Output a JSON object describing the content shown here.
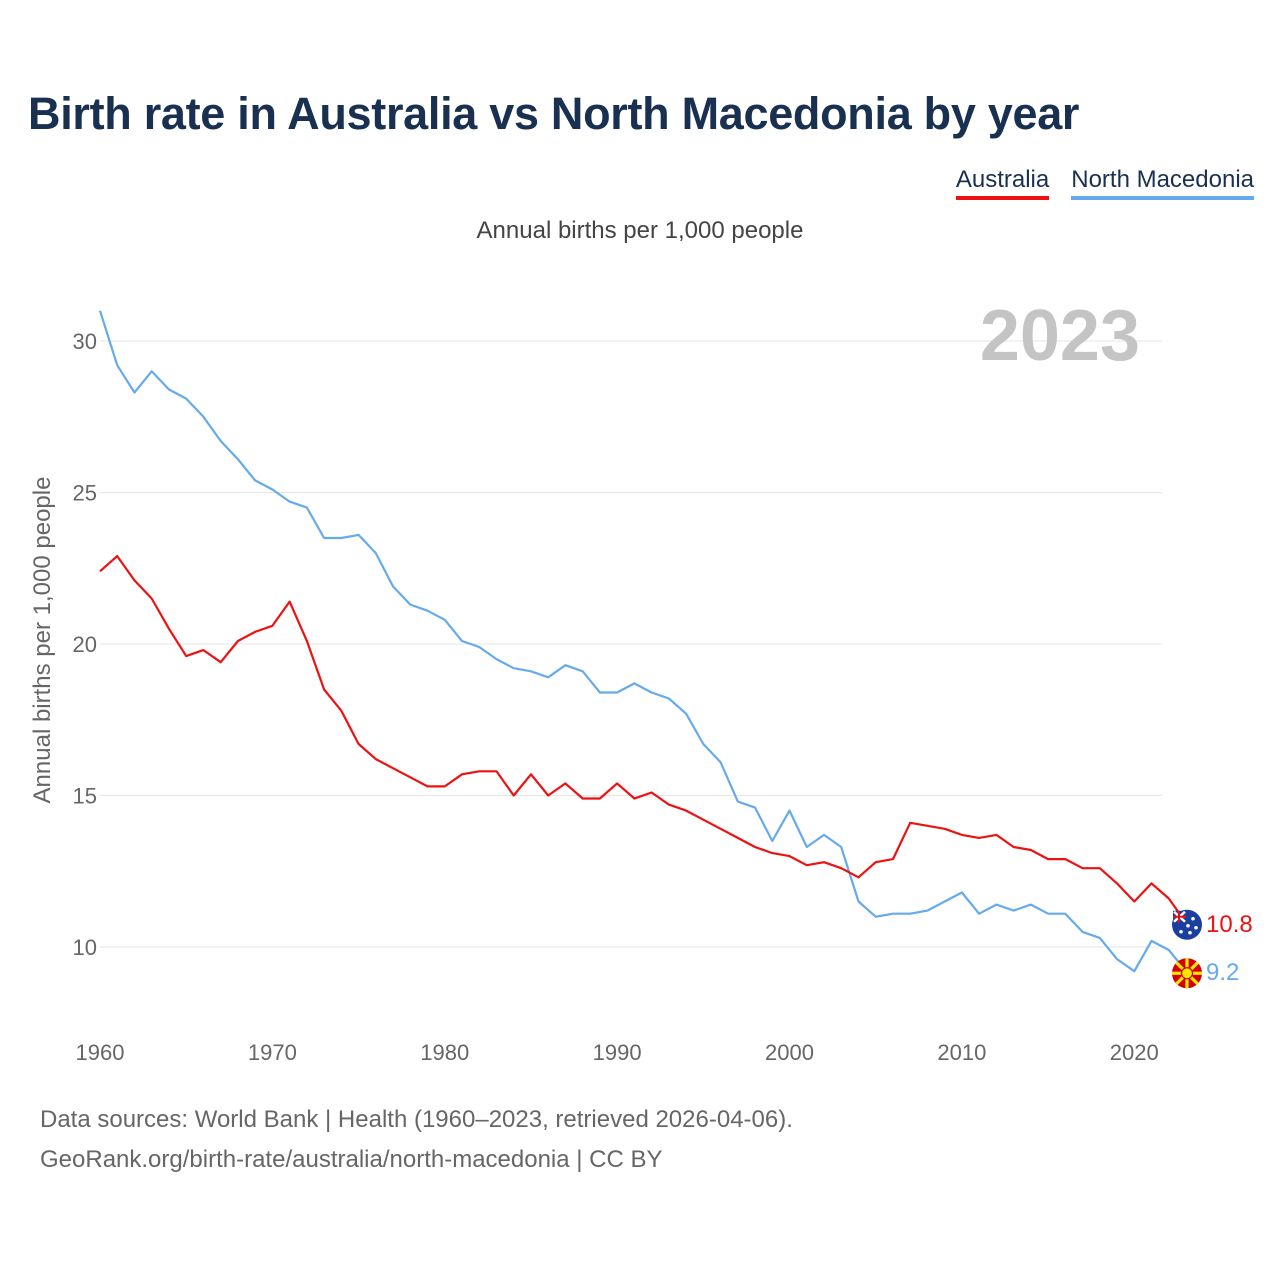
{
  "title": "Birth rate in Australia vs North Macedonia by year",
  "subtitle": "Annual births per 1,000 people",
  "year_badge": "2023",
  "footer": {
    "line1": "Data sources: World Bank | Health (1960–2023, retrieved 2026-04-06).",
    "line2": "GeoRank.org/birth-rate/australia/north-macedonia | CC BY"
  },
  "colors": {
    "australia": "#ee1111",
    "north_macedonia": "#66aaee",
    "grid": "#e6e6e6",
    "axis_text": "#666666"
  },
  "chart_data": {
    "type": "line",
    "title": "Birth rate in Australia vs North Macedonia by year",
    "xlabel": "",
    "ylabel": "Annual births per 1,000 people",
    "xlim": [
      1960,
      2023
    ],
    "ylim": [
      8,
      31
    ],
    "x_ticks": [
      1960,
      1970,
      1980,
      1990,
      2000,
      2010,
      2020
    ],
    "y_ticks": [
      10,
      15,
      20,
      25,
      30
    ],
    "x": [
      1960,
      1961,
      1962,
      1963,
      1964,
      1965,
      1966,
      1967,
      1968,
      1969,
      1970,
      1971,
      1972,
      1973,
      1974,
      1975,
      1976,
      1977,
      1978,
      1979,
      1980,
      1981,
      1982,
      1983,
      1984,
      1985,
      1986,
      1987,
      1988,
      1989,
      1990,
      1991,
      1992,
      1993,
      1994,
      1995,
      1996,
      1997,
      1998,
      1999,
      2000,
      2001,
      2002,
      2003,
      2004,
      2005,
      2006,
      2007,
      2008,
      2009,
      2010,
      2011,
      2012,
      2013,
      2014,
      2015,
      2016,
      2017,
      2018,
      2019,
      2020,
      2021,
      2022,
      2023
    ],
    "series": [
      {
        "name": "Australia",
        "color": "#ee1111",
        "end_label": "10.8",
        "values": [
          22.4,
          22.9,
          22.1,
          21.5,
          20.5,
          19.6,
          19.8,
          19.4,
          20.1,
          20.4,
          20.6,
          21.4,
          20.1,
          18.5,
          17.8,
          16.7,
          16.2,
          15.9,
          15.6,
          15.3,
          15.3,
          15.7,
          15.8,
          15.8,
          15.0,
          15.7,
          15.0,
          15.4,
          14.9,
          14.9,
          15.4,
          14.9,
          15.1,
          14.7,
          14.5,
          14.2,
          13.9,
          13.6,
          13.3,
          13.1,
          13.0,
          12.7,
          12.8,
          12.6,
          12.3,
          12.8,
          12.9,
          14.1,
          14.0,
          13.9,
          13.7,
          13.6,
          13.7,
          13.3,
          13.2,
          12.9,
          12.9,
          12.6,
          12.6,
          12.1,
          11.5,
          12.1,
          11.6,
          10.8
        ]
      },
      {
        "name": "North Macedonia",
        "color": "#66aaee",
        "end_label": "9.2",
        "values": [
          31.0,
          29.2,
          28.3,
          29.0,
          28.4,
          28.1,
          27.5,
          26.7,
          26.1,
          25.4,
          25.1,
          24.7,
          24.5,
          23.5,
          23.5,
          23.6,
          23.0,
          21.9,
          21.3,
          21.1,
          20.8,
          20.1,
          19.9,
          19.5,
          19.2,
          19.1,
          18.9,
          19.3,
          19.1,
          18.4,
          18.4,
          18.7,
          18.4,
          18.2,
          17.7,
          16.7,
          16.1,
          14.8,
          14.6,
          13.5,
          14.5,
          13.3,
          13.7,
          13.3,
          11.5,
          11.0,
          11.1,
          11.1,
          11.2,
          11.5,
          11.8,
          11.1,
          11.4,
          11.2,
          11.4,
          11.1,
          11.1,
          10.5,
          10.3,
          9.6,
          9.2,
          10.2,
          9.9,
          9.2
        ]
      }
    ]
  }
}
